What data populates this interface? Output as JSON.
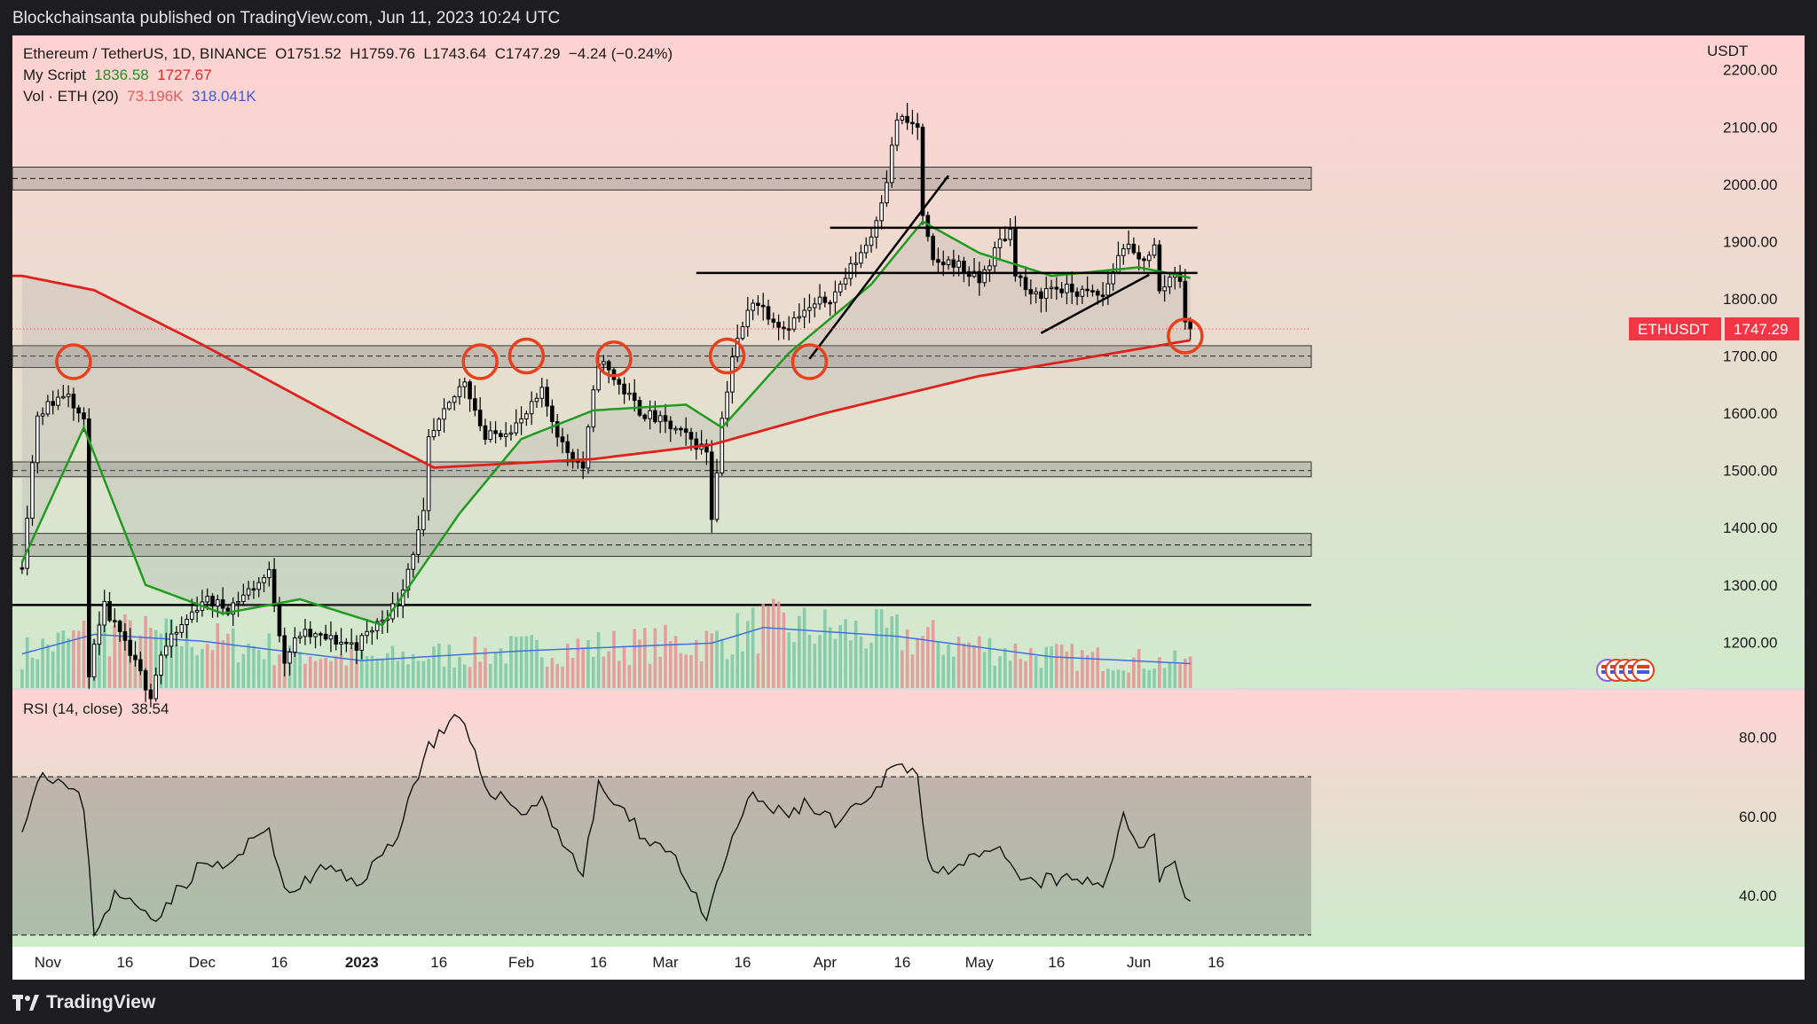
{
  "header": {
    "publisher": "Blockchainsanta published on TradingView.com, Jun 11, 2023 10:24 UTC"
  },
  "footer": {
    "brand": "TradingView"
  },
  "legend": {
    "symbol": "Ethereum / TetherUS, 1D, BINANCE",
    "open": "O1751.52",
    "high": "H1759.76",
    "low": "L1743.64",
    "close": "C1747.29",
    "change": "−4.24 (−0.24%)",
    "script_name": "My Script",
    "script_v1": "1836.58",
    "script_v2": "1727.67",
    "vol_name": "Vol · ETH (20)",
    "vol_v1": "73.196K",
    "vol_v2": "318.041K",
    "rsi_name": "RSI (14, close)",
    "rsi_value": "38.54"
  },
  "price_tag": {
    "symbol": "ETHUSDT",
    "price": "1747.29"
  },
  "colors": {
    "up": "#ffffff",
    "down": "#000000",
    "ma_green": "#1f9b1f",
    "ma_red": "#e0201c",
    "vol_up": "#7fc9a8",
    "vol_down": "#e79696",
    "vol_ma": "#3f6fe0",
    "circle": "#e8401c"
  },
  "chart_data": [
    {
      "type": "candlestick",
      "title": "",
      "y_unit": "USDT",
      "ylim": [
        1120,
        2260
      ],
      "y_ticks": [
        "2200.00",
        "2100.00",
        "2000.00",
        "1900.00",
        "1800.00",
        "1700.00",
        "1600.00",
        "1500.00",
        "1400.00",
        "1300.00",
        "1200.00"
      ],
      "x_ticks": [
        "Nov",
        "16",
        "Dec",
        "16",
        "2023",
        "16",
        "Feb",
        "16",
        "Mar",
        "16",
        "Apr",
        "16",
        "May",
        "16",
        "Jun",
        "16"
      ],
      "date_range": [
        "2022-10-27",
        "2023-06-11"
      ],
      "close_anchors": [
        [
          "2022-10-27",
          1340
        ],
        [
          "2022-10-30",
          1600
        ],
        [
          "2022-11-05",
          1640
        ],
        [
          "2022-11-08",
          1580
        ],
        [
          "2022-11-09",
          1150
        ],
        [
          "2022-11-12",
          1260
        ],
        [
          "2022-11-21",
          1110
        ],
        [
          "2022-11-23",
          1180
        ],
        [
          "2022-12-01",
          1275
        ],
        [
          "2022-12-06",
          1260
        ],
        [
          "2022-12-14",
          1320
        ],
        [
          "2022-12-17",
          1170
        ],
        [
          "2022-12-20",
          1215
        ],
        [
          "2022-12-31",
          1195
        ],
        [
          "2023-01-08",
          1270
        ],
        [
          "2023-01-13",
          1420
        ],
        [
          "2023-01-14",
          1550
        ],
        [
          "2023-01-21",
          1660
        ],
        [
          "2023-01-25",
          1555
        ],
        [
          "2023-02-01",
          1585
        ],
        [
          "2023-02-05",
          1635
        ],
        [
          "2023-02-09",
          1545
        ],
        [
          "2023-02-13",
          1505
        ],
        [
          "2023-02-16",
          1695
        ],
        [
          "2023-02-24",
          1605
        ],
        [
          "2023-03-03",
          1570
        ],
        [
          "2023-03-09",
          1535
        ],
        [
          "2023-03-10",
          1420
        ],
        [
          "2023-03-12",
          1590
        ],
        [
          "2023-03-14",
          1700
        ],
        [
          "2023-03-18",
          1800
        ],
        [
          "2023-03-24",
          1750
        ],
        [
          "2023-03-28",
          1775
        ],
        [
          "2023-04-03",
          1810
        ],
        [
          "2023-04-10",
          1910
        ],
        [
          "2023-04-13",
          2010
        ],
        [
          "2023-04-15",
          2115
        ],
        [
          "2023-04-19",
          2100
        ],
        [
          "2023-04-20",
          1940
        ],
        [
          "2023-04-22",
          1860
        ],
        [
          "2023-04-26",
          1865
        ],
        [
          "2023-05-01",
          1830
        ],
        [
          "2023-05-05",
          1900
        ],
        [
          "2023-05-07",
          1920
        ],
        [
          "2023-05-08",
          1850
        ],
        [
          "2023-05-11",
          1800
        ],
        [
          "2023-05-15",
          1820
        ],
        [
          "2023-05-21",
          1810
        ],
        [
          "2023-05-25",
          1805
        ],
        [
          "2023-05-29",
          1895
        ],
        [
          "2023-06-01",
          1865
        ],
        [
          "2023-06-04",
          1890
        ],
        [
          "2023-06-05",
          1810
        ],
        [
          "2023-06-08",
          1850
        ],
        [
          "2023-06-09",
          1835
        ],
        [
          "2023-06-10",
          1752
        ],
        [
          "2023-06-11",
          1747.29
        ]
      ],
      "ma_short_anchors": [
        [
          "2022-10-27",
          1340
        ],
        [
          "2022-11-08",
          1575
        ],
        [
          "2022-11-20",
          1300
        ],
        [
          "2022-12-05",
          1250
        ],
        [
          "2022-12-20",
          1275
        ],
        [
          "2023-01-05",
          1230
        ],
        [
          "2023-01-20",
          1425
        ],
        [
          "2023-02-01",
          1555
        ],
        [
          "2023-02-15",
          1605
        ],
        [
          "2023-03-05",
          1615
        ],
        [
          "2023-03-12",
          1575
        ],
        [
          "2023-03-25",
          1705
        ],
        [
          "2023-04-10",
          1825
        ],
        [
          "2023-04-20",
          1935
        ],
        [
          "2023-05-01",
          1880
        ],
        [
          "2023-05-15",
          1840
        ],
        [
          "2023-06-01",
          1855
        ],
        [
          "2023-06-11",
          1836.58
        ]
      ],
      "ma_long_anchors": [
        [
          "2022-10-27",
          1840
        ],
        [
          "2022-11-10",
          1815
        ],
        [
          "2022-12-01",
          1720
        ],
        [
          "2023-01-01",
          1570
        ],
        [
          "2023-01-15",
          1505
        ],
        [
          "2023-02-15",
          1520
        ],
        [
          "2023-03-10",
          1545
        ],
        [
          "2023-04-01",
          1600
        ],
        [
          "2023-05-01",
          1665
        ],
        [
          "2023-06-11",
          1727.67
        ]
      ],
      "support_zones": [
        [
          1990,
          2030
        ],
        [
          1680,
          1718
        ],
        [
          1489,
          1515
        ],
        [
          1350,
          1390
        ]
      ],
      "support_levels": [
        1265
      ],
      "dashed_levels": [
        2010,
        1700,
        1500,
        1370
      ],
      "resistance_segments": [
        {
          "from": "2023-04-02",
          "to": "2023-06-11",
          "price": 1924
        },
        {
          "from": "2023-03-07",
          "to": "2023-06-11",
          "price": 1845
        }
      ],
      "trendlines": [
        {
          "from": [
            "2023-03-29",
            1695
          ],
          "to": [
            "2023-04-25",
            2015
          ]
        },
        {
          "from": [
            "2023-05-13",
            1740
          ],
          "to": [
            "2023-06-03",
            1842
          ]
        }
      ],
      "circles": [
        [
          "2022-11-06",
          1690
        ],
        [
          "2023-01-24",
          1690
        ],
        [
          "2023-02-02",
          1700
        ],
        [
          "2023-02-19",
          1695
        ],
        [
          "2023-03-13",
          1700
        ],
        [
          "2023-03-29",
          1690
        ],
        [
          "2023-06-10",
          1735
        ]
      ],
      "current_price": 1747.29
    },
    {
      "type": "bar",
      "title": "",
      "series_name": "Vol · ETH (20)",
      "volume_relative": true,
      "volume_ma_anchors": [
        [
          "2022-10-27",
          0.35
        ],
        [
          "2022-11-10",
          0.55
        ],
        [
          "2022-12-01",
          0.48
        ],
        [
          "2023-01-01",
          0.28
        ],
        [
          "2023-02-01",
          0.38
        ],
        [
          "2023-03-10",
          0.46
        ],
        [
          "2023-03-20",
          0.62
        ],
        [
          "2023-04-15",
          0.53
        ],
        [
          "2023-05-15",
          0.32
        ],
        [
          "2023-06-11",
          0.25
        ]
      ]
    },
    {
      "type": "line",
      "title": "",
      "series_name": "RSI (14, close)",
      "ylim": [
        27,
        92
      ],
      "y_ticks": [
        "80.00",
        "60.00",
        "40.00"
      ],
      "bands": [
        30,
        70
      ],
      "rsi_anchors": [
        [
          "2022-10-27",
          58
        ],
        [
          "2022-10-31",
          72
        ],
        [
          "2022-11-05",
          67
        ],
        [
          "2022-11-08",
          63
        ],
        [
          "2022-11-10",
          31
        ],
        [
          "2022-11-14",
          40
        ],
        [
          "2022-11-22",
          35
        ],
        [
          "2022-12-01",
          48
        ],
        [
          "2022-12-06",
          47
        ],
        [
          "2022-12-14",
          58
        ],
        [
          "2022-12-17",
          40
        ],
        [
          "2022-12-25",
          47
        ],
        [
          "2022-12-31",
          43
        ],
        [
          "2023-01-07",
          53
        ],
        [
          "2023-01-14",
          78
        ],
        [
          "2023-01-20",
          85
        ],
        [
          "2023-01-25",
          68
        ],
        [
          "2023-02-01",
          61
        ],
        [
          "2023-02-05",
          64
        ],
        [
          "2023-02-09",
          54
        ],
        [
          "2023-02-13",
          45
        ],
        [
          "2023-02-16",
          68
        ],
        [
          "2023-02-24",
          56
        ],
        [
          "2023-03-03",
          50
        ],
        [
          "2023-03-09",
          33
        ],
        [
          "2023-03-14",
          55
        ],
        [
          "2023-03-18",
          65
        ],
        [
          "2023-03-24",
          60
        ],
        [
          "2023-03-28",
          63
        ],
        [
          "2023-04-03",
          58
        ],
        [
          "2023-04-10",
          64
        ],
        [
          "2023-04-15",
          75
        ],
        [
          "2023-04-19",
          70
        ],
        [
          "2023-04-21",
          48
        ],
        [
          "2023-04-26",
          47
        ],
        [
          "2023-05-05",
          51
        ],
        [
          "2023-05-08",
          45
        ],
        [
          "2023-05-11",
          43
        ],
        [
          "2023-05-15",
          44
        ],
        [
          "2023-05-25",
          43
        ],
        [
          "2023-05-29",
          59
        ],
        [
          "2023-06-01",
          53
        ],
        [
          "2023-06-04",
          56
        ],
        [
          "2023-06-05",
          45
        ],
        [
          "2023-06-08",
          49
        ],
        [
          "2023-06-10",
          40
        ],
        [
          "2023-06-11",
          38.54
        ]
      ]
    }
  ]
}
